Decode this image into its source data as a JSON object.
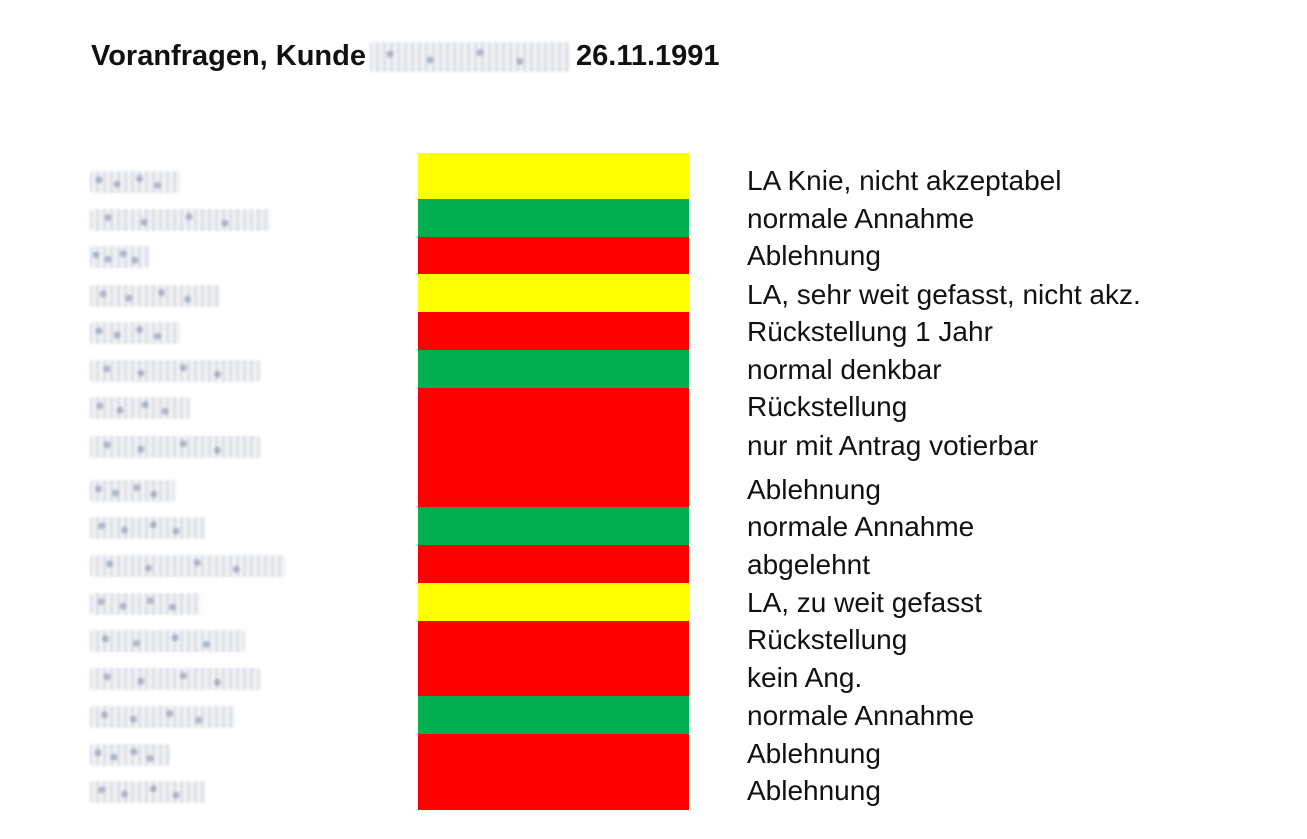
{
  "document": {
    "title_prefix": "Voranfragen, Kunde",
    "title_date": "26.11.1991"
  },
  "colors": {
    "yellow": "#ffff00",
    "green": "#00b050",
    "red": "#ff0000"
  },
  "rows": [
    {
      "status": "yellow",
      "text": "LA Knie, nicht akzeptabel"
    },
    {
      "status": "green",
      "text": "normale Annahme"
    },
    {
      "status": "red",
      "text": "Ablehnung"
    },
    {
      "status": "yellow",
      "text": "LA, sehr weit gefasst, nicht akz."
    },
    {
      "status": "red",
      "text": "Rückstellung 1 Jahr"
    },
    {
      "status": "green",
      "text": "normal denkbar"
    },
    {
      "status": "red",
      "text": "Rückstellung"
    },
    {
      "status": "red",
      "text": "nur mit Antrag votierbar"
    },
    {
      "status": "red",
      "text": "Ablehnung"
    },
    {
      "status": "green",
      "text": "normale Annahme"
    },
    {
      "status": "red",
      "text": "abgelehnt"
    },
    {
      "status": "yellow",
      "text": "LA, zu weit gefasst"
    },
    {
      "status": "red",
      "text": "Rückstellung"
    },
    {
      "status": "red",
      "text": "kein Ang."
    },
    {
      "status": "green",
      "text": "normale Annahme"
    },
    {
      "status": "red",
      "text": "Ablehnung"
    },
    {
      "status": "red",
      "text": "Ablehnung"
    }
  ]
}
